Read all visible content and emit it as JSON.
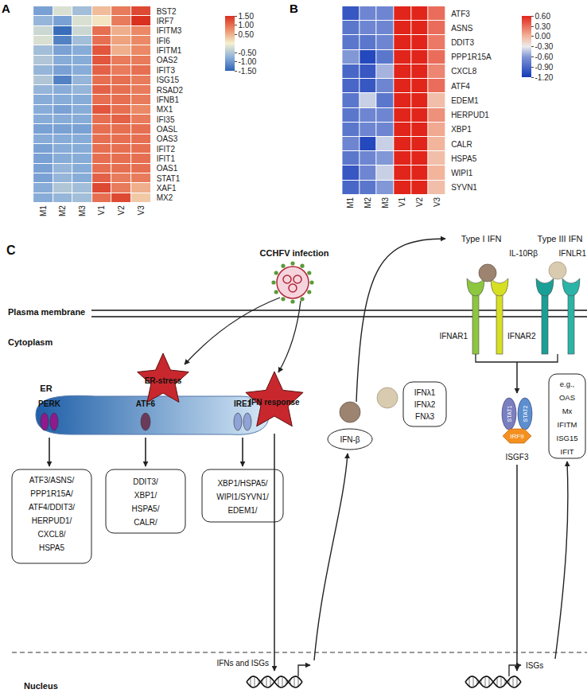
{
  "chart_data": [
    {
      "type": "heatmap",
      "annotations": [
        "A"
      ],
      "x": [
        "M1",
        "M2",
        "M3",
        "V1",
        "V2",
        "V3"
      ],
      "y": [
        "BST2",
        "IRF7",
        "IFITM3",
        "IFI6",
        "IFITM1",
        "OAS2",
        "IFIT3",
        "ISG15",
        "RSAD2",
        "IFNB1",
        "MX1",
        "IFI35",
        "OASL",
        "OAS3",
        "IFIT2",
        "IFIT1",
        "OAS1",
        "STAT1",
        "XAF1",
        "MX2"
      ],
      "cells": [
        [
          -0.9,
          -0.2,
          -0.6,
          0.4,
          0.9,
          1.3
        ],
        [
          -0.7,
          -0.9,
          -0.2,
          0.1,
          0.9,
          1.5
        ],
        [
          -0.3,
          -1.4,
          -0.3,
          1.0,
          0.5,
          0.8
        ],
        [
          -0.2,
          -1.2,
          -0.6,
          1.0,
          0.6,
          0.8
        ],
        [
          -0.6,
          -0.9,
          -0.8,
          1.2,
          0.5,
          0.8
        ],
        [
          -0.5,
          -0.8,
          -0.8,
          1.2,
          0.9,
          0.9
        ],
        [
          -0.7,
          -0.9,
          -0.8,
          1.1,
          0.9,
          1.0
        ],
        [
          -0.5,
          -1.2,
          -0.7,
          1.0,
          1.0,
          0.9
        ],
        [
          -0.7,
          -0.8,
          -0.7,
          1.1,
          1.0,
          0.9
        ],
        [
          -0.8,
          -0.8,
          -0.8,
          1.0,
          1.0,
          0.9
        ],
        [
          -0.8,
          -0.9,
          -0.8,
          1.2,
          1.0,
          0.8
        ],
        [
          -0.8,
          -0.8,
          -0.8,
          1.0,
          1.1,
          0.9
        ],
        [
          -0.9,
          -0.9,
          -0.9,
          1.0,
          1.0,
          1.0
        ],
        [
          -0.8,
          -0.8,
          -0.8,
          1.0,
          1.0,
          1.0
        ],
        [
          -0.9,
          -0.8,
          -0.8,
          1.0,
          1.0,
          1.0
        ],
        [
          -0.9,
          -0.8,
          -0.8,
          1.0,
          1.0,
          1.0
        ],
        [
          -0.9,
          -0.7,
          -0.8,
          1.0,
          1.0,
          1.0
        ],
        [
          -0.9,
          -0.7,
          -0.8,
          1.1,
          0.9,
          0.9
        ],
        [
          -0.8,
          -0.5,
          -0.6,
          1.3,
          0.9,
          0.5
        ],
        [
          -0.8,
          -0.7,
          -0.6,
          1.0,
          1.3,
          0.3
        ]
      ],
      "colorbar": {
        "range": [
          -1.5,
          1.5
        ],
        "ticks": [
          {
            "value": 1.5,
            "label": "1.50"
          },
          {
            "value": 1.0,
            "label": "1.00"
          },
          {
            "value": 0.5,
            "label": "0.50"
          },
          {
            "value": -0.5,
            "label": "-0.50"
          },
          {
            "value": -1.0,
            "label": "-1.00"
          },
          {
            "value": -1.5,
            "label": "-1.50"
          }
        ]
      }
    },
    {
      "type": "heatmap",
      "annotations": [
        "B"
      ],
      "x": [
        "M1",
        "M2",
        "M3",
        "V1",
        "V2",
        "V3"
      ],
      "y": [
        "ATF3",
        "ASNS",
        "DDIT3",
        "PPP1R15A",
        "CXCL8",
        "ATF4",
        "EDEM1",
        "HERPUD1",
        "XBP1",
        "CALR",
        "HSPA5",
        "WIPI1",
        "SYVN1"
      ],
      "cells": [
        [
          -1.0,
          -0.7,
          -0.7,
          0.6,
          0.6,
          0.3
        ],
        [
          -0.8,
          -0.7,
          -0.7,
          0.6,
          0.6,
          0.3
        ],
        [
          -0.8,
          -0.8,
          -0.7,
          0.6,
          0.6,
          0.25
        ],
        [
          -0.6,
          -1.1,
          -0.8,
          0.6,
          0.6,
          0.3
        ],
        [
          -0.9,
          -1.0,
          -0.5,
          0.6,
          0.6,
          0.2
        ],
        [
          -0.9,
          -1.0,
          -0.7,
          0.6,
          0.6,
          0.3
        ],
        [
          -0.8,
          -0.4,
          -0.8,
          0.6,
          0.6,
          -0.05
        ],
        [
          -0.8,
          -0.7,
          -0.7,
          0.6,
          0.6,
          0.15
        ],
        [
          -0.8,
          -0.7,
          -0.7,
          0.6,
          0.6,
          0.05
        ],
        [
          -0.7,
          -1.1,
          -0.4,
          0.6,
          0.6,
          0.0
        ],
        [
          -0.8,
          -0.7,
          -0.6,
          0.6,
          0.6,
          -0.05
        ],
        [
          -1.0,
          -0.7,
          -0.4,
          0.6,
          0.6,
          0.0
        ],
        [
          -0.9,
          -0.8,
          -0.6,
          0.6,
          0.6,
          -0.05
        ]
      ],
      "colorbar": {
        "range": [
          -1.2,
          0.6
        ],
        "ticks": [
          {
            "value": 0.6,
            "label": "0.60"
          },
          {
            "value": 0.3,
            "label": "0.30"
          },
          {
            "value": 0.0,
            "label": "0.00"
          },
          {
            "value": -0.3,
            "label": "-0.30"
          },
          {
            "value": -0.6,
            "label": "-0.60"
          },
          {
            "value": -0.9,
            "label": "-0.90"
          },
          {
            "value": -1.2,
            "label": "-1.20"
          }
        ]
      }
    }
  ],
  "diagram": {
    "label": "C",
    "virus": "CCHFV infection",
    "compartments": {
      "membrane": "Plasma membrane",
      "cytoplasm": "Cytoplasm",
      "nucleus": "Nucleus"
    },
    "er": {
      "label": "ER",
      "stress": "ER-stress",
      "sensors": [
        {
          "name": "PERK",
          "targets": [
            "ATF3/ASNS/",
            "PPP1R15A/",
            "ATF4/DDIT3/",
            "HERPUD1/",
            "CXCL8/",
            "HSPA5"
          ]
        },
        {
          "name": "ATF6",
          "targets": [
            "DDIT3/",
            "XBP1/",
            "HSPA5/",
            "CALR/"
          ]
        },
        {
          "name": "IRE1",
          "targets": [
            "XBP1/HSPA5/",
            "WIPI1/SYVN1/",
            "EDEM1/"
          ]
        }
      ]
    },
    "ifn_response": "IFN response",
    "ifns": {
      "beta": "IFN-β",
      "lambda": [
        "IFNλ1",
        "IFNλ2",
        "FNλ3"
      ]
    },
    "receptors": {
      "type1": {
        "label": "Type I IFN",
        "chains": [
          "IFNAR1",
          "IFNAR2"
        ]
      },
      "type3": {
        "label": "Type III IFN",
        "chains": [
          "IL-10Rβ",
          "IFNLR1"
        ]
      }
    },
    "complex": {
      "name": "ISGF3",
      "parts": [
        "STAT1",
        "STAT2",
        "IRF9"
      ]
    },
    "isgs": [
      "e.g.,",
      "OAS",
      "Mx",
      "IFITM",
      "ISG15",
      "IFIT"
    ],
    "transcripts": [
      "IFNs and ISGs",
      "ISGs"
    ]
  }
}
